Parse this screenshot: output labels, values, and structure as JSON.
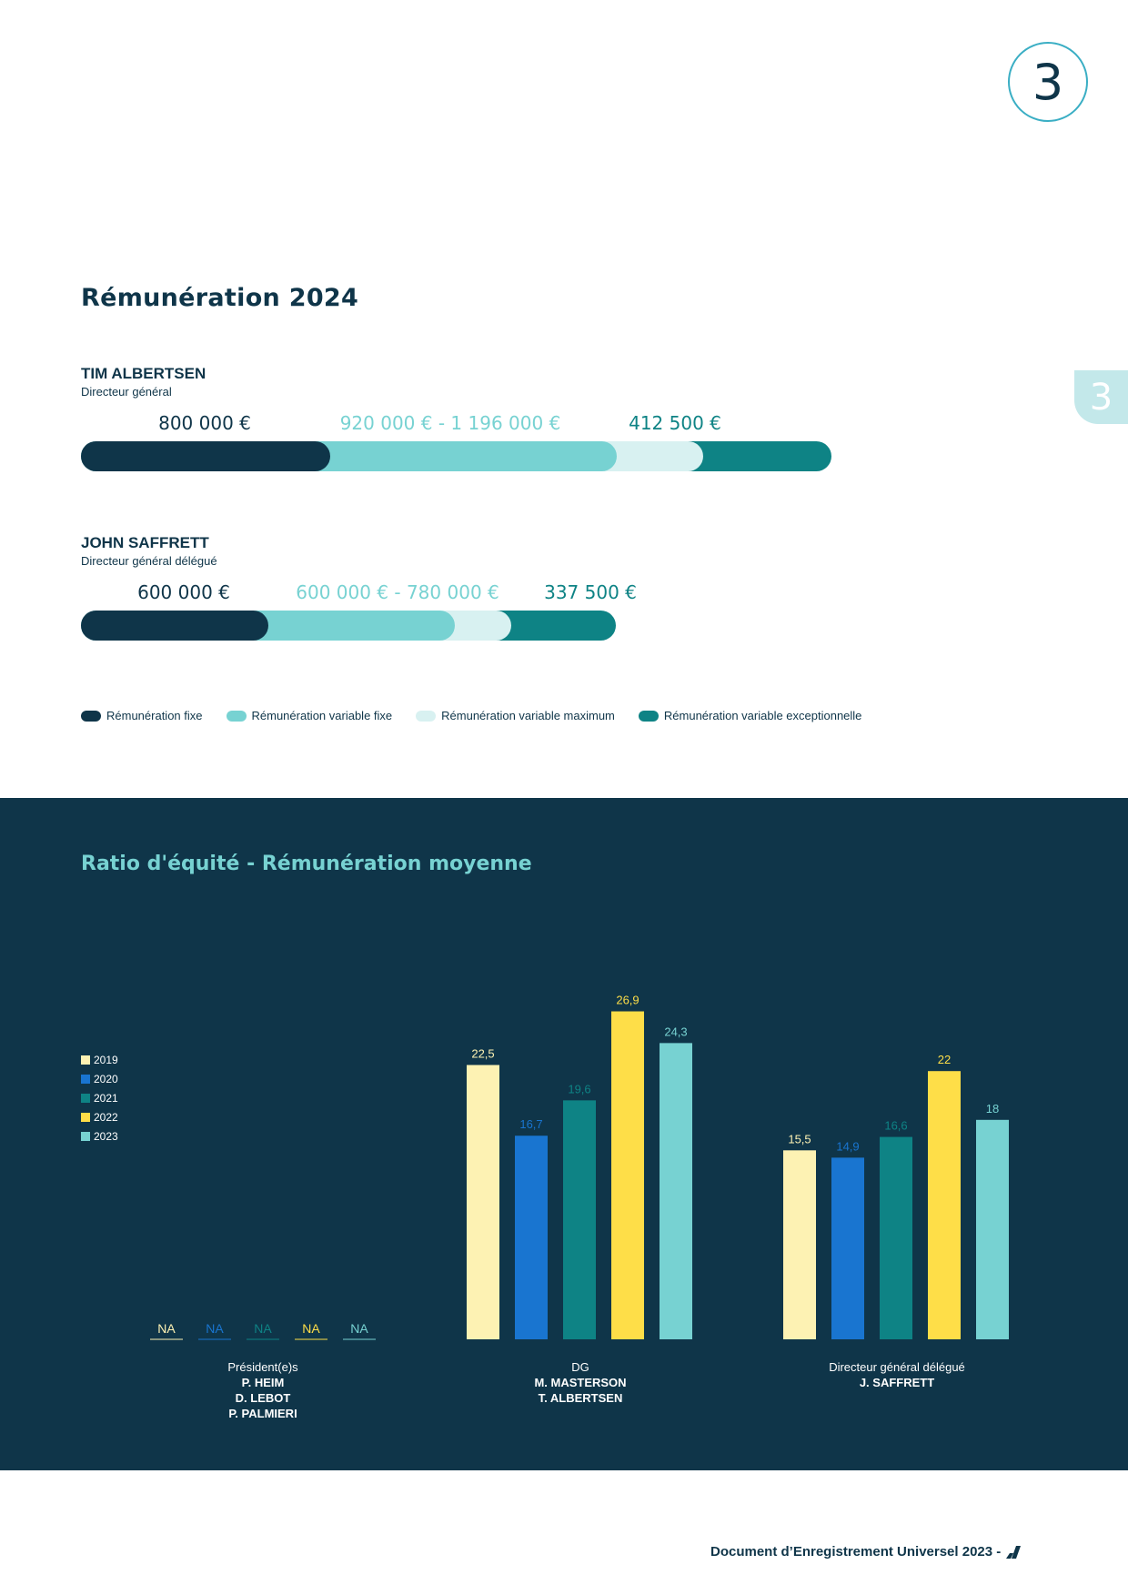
{
  "page": {
    "chapter_number": "3",
    "side_tab_number": "3",
    "footer_text": "Document d’Enregistrement Universel 2023 -",
    "footer_logo_icon": "brand-logo-icon"
  },
  "remuneration": {
    "title": "Rémunération 2024",
    "people": [
      {
        "name": "TIM ALBERTSEN",
        "role": "Directeur général",
        "fixed_label": "800 000 €",
        "variable_label": "920 000 € - 1 196 000 €",
        "exceptional_label": "412 500 €",
        "fixed": 800000,
        "variable_target": 920000,
        "variable_max": 1196000,
        "exceptional": 412500
      },
      {
        "name": "JOHN SAFFRETT",
        "role": "Directeur général délégué",
        "fixed_label": "600 000 €",
        "variable_label": "600 000 € - 780 000 €",
        "exceptional_label": "337 500 €",
        "fixed": 600000,
        "variable_target": 600000,
        "variable_max": 780000,
        "exceptional": 337500
      }
    ],
    "legend": [
      {
        "label": "Rémunération fixe",
        "color": "#0f3549"
      },
      {
        "label": "Rémunération variable fixe",
        "color": "#77d2d2"
      },
      {
        "label": "Rémunération variable maximum",
        "color": "#d8f1f1"
      },
      {
        "label": "Rémunération variable exceptionnelle",
        "color": "#0e8385"
      }
    ]
  },
  "chart_data": {
    "type": "bar",
    "title": "Ratio d'équité - Rémunération moyenne",
    "series": [
      {
        "name": "2019",
        "color": "#fdf2b3"
      },
      {
        "name": "2020",
        "color": "#1975d0"
      },
      {
        "name": "2021",
        "color": "#0e8385"
      },
      {
        "name": "2022",
        "color": "#fede48"
      },
      {
        "name": "2023",
        "color": "#77d2d2"
      }
    ],
    "groups": [
      {
        "label": "Président(e)s",
        "people": [
          "P. HEIM",
          "D. LEBOT",
          "P. PALMIERI"
        ],
        "values": [
          null,
          null,
          null,
          null,
          null
        ],
        "value_labels": [
          "NA",
          "NA",
          "NA",
          "NA",
          "NA"
        ]
      },
      {
        "label": "DG",
        "people": [
          "M. MASTERSON",
          "T. ALBERTSEN"
        ],
        "values": [
          22.5,
          16.7,
          19.6,
          26.9,
          24.3
        ],
        "value_labels": [
          "22,5",
          "16,7",
          "19,6",
          "26,9",
          "24,3"
        ]
      },
      {
        "label": "Directeur général délégué",
        "people": [
          "J. SAFFRETT"
        ],
        "values": [
          15.5,
          14.9,
          16.6,
          22,
          18
        ],
        "value_labels": [
          "15,5",
          "14,9",
          "16,6",
          "22",
          "18"
        ]
      }
    ],
    "ylim": [
      0,
      28
    ],
    "legend_position": "left"
  }
}
